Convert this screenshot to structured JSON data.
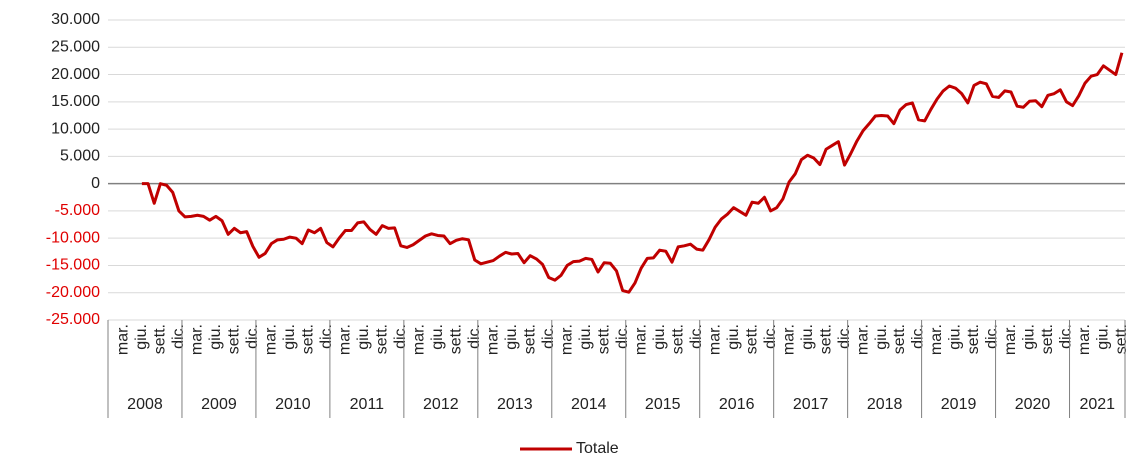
{
  "chart_data": {
    "type": "line",
    "categories": [
      null,
      null,
      "mar.",
      null,
      null,
      "giu.",
      null,
      null,
      "sett.",
      null,
      null,
      "dic.",
      null,
      null,
      "mar.",
      null,
      null,
      "giu.",
      null,
      null,
      "sett.",
      null,
      null,
      "dic.",
      null,
      null,
      "mar.",
      null,
      null,
      "giu.",
      null,
      null,
      "sett.",
      null,
      null,
      "dic.",
      null,
      null,
      "mar.",
      null,
      null,
      "giu.",
      null,
      null,
      "sett.",
      null,
      null,
      "dic.",
      null,
      null,
      "mar.",
      null,
      null,
      "giu.",
      null,
      null,
      "sett.",
      null,
      null,
      "dic.",
      null,
      null,
      "mar.",
      null,
      null,
      "giu.",
      null,
      null,
      "sett.",
      null,
      null,
      "dic.",
      null,
      null,
      "mar.",
      null,
      null,
      "giu.",
      null,
      null,
      "sett.",
      null,
      null,
      "dic.",
      null,
      null,
      "mar.",
      null,
      null,
      "giu.",
      null,
      null,
      "sett.",
      null,
      null,
      "dic.",
      null,
      null,
      "mar.",
      null,
      null,
      "giu.",
      null,
      null,
      "sett.",
      null,
      null,
      "dic.",
      null,
      null,
      "mar.",
      null,
      null,
      "giu.",
      null,
      null,
      "sett.",
      null,
      null,
      "dic.",
      null,
      null,
      "mar.",
      null,
      null,
      "giu.",
      null,
      null,
      "sett.",
      null,
      null,
      "dic.",
      null,
      null,
      "mar.",
      null,
      null,
      "giu.",
      null,
      null,
      "sett.",
      null,
      null,
      "dic.",
      null,
      null,
      "mar.",
      null,
      null,
      "giu.",
      null,
      null,
      "sett.",
      null,
      null,
      "dic.",
      null,
      null,
      "mar.",
      null,
      null,
      "giu.",
      null,
      null,
      "sett."
    ],
    "years": [
      "2008",
      "2009",
      "2010",
      "2011",
      "2012",
      "2013",
      "2014",
      "2015",
      "2016",
      "2017",
      "2018",
      "2019",
      "2020",
      "2021"
    ],
    "series": [
      {
        "name": "Totale",
        "color": "#c00000",
        "values": [
          null,
          null,
          null,
          null,
          null,
          0,
          0,
          -3600,
          0,
          -300,
          -1600,
          -5000,
          -6100,
          -6000,
          -5800,
          -6000,
          -6700,
          -6000,
          -6800,
          -9300,
          -8200,
          -9000,
          -8800,
          -11500,
          -13500,
          -12800,
          -11000,
          -10300,
          -10200,
          -9800,
          -10000,
          -11000,
          -8500,
          -9000,
          -8200,
          -10800,
          -11600,
          -10000,
          -8600,
          -8600,
          -7200,
          -7000,
          -8400,
          -9300,
          -7700,
          -8200,
          -8100,
          -11400,
          -11700,
          -11200,
          -10400,
          -9600,
          -9200,
          -9500,
          -9600,
          -11000,
          -10400,
          -10100,
          -10300,
          -14000,
          -14700,
          -14400,
          -14100,
          -13300,
          -12600,
          -12900,
          -12800,
          -14500,
          -13200,
          -13800,
          -14800,
          -17200,
          -17700,
          -16800,
          -15000,
          -14300,
          -14200,
          -13700,
          -13900,
          -16200,
          -14500,
          -14600,
          -16000,
          -19600,
          -19900,
          -18200,
          -15500,
          -13700,
          -13600,
          -12200,
          -12400,
          -14400,
          -11600,
          -11400,
          -11100,
          -12000,
          -12200,
          -10300,
          -8000,
          -6500,
          -5600,
          -4400,
          -5100,
          -5800,
          -3400,
          -3600,
          -2500,
          -5000,
          -4400,
          -2800,
          300,
          1800,
          4400,
          5200,
          4700,
          3500,
          6300,
          7000,
          7700,
          3400,
          5500,
          7800,
          9700,
          11000,
          12400,
          12500,
          12400,
          11000,
          13500,
          14500,
          14800,
          11700,
          11500,
          13600,
          15500,
          17000,
          17900,
          17500,
          16500,
          14800,
          18000,
          18600,
          18300,
          16000,
          15800,
          17000,
          16800,
          14200,
          14000,
          15100,
          15200,
          14100,
          16200,
          16500,
          17200,
          15000,
          14300,
          16100,
          18400,
          19700,
          20000,
          21600,
          20800,
          20000,
          24000
        ]
      }
    ],
    "ylim": [
      -25000,
      30000
    ],
    "yticks": [
      {
        "value": -25000,
        "label": "-25.000"
      },
      {
        "value": -20000,
        "label": "-20.000"
      },
      {
        "value": -15000,
        "label": "-15.000"
      },
      {
        "value": -10000,
        "label": "-10.000"
      },
      {
        "value": -5000,
        "label": "-5.000"
      },
      0,
      {
        "value": 5000,
        "label": "5.000"
      },
      {
        "value": 10000,
        "label": "10.000"
      },
      {
        "value": 15000,
        "label": "15.000"
      },
      {
        "value": 20000,
        "label": "20.000"
      },
      {
        "value": 25000,
        "label": "25.000"
      },
      {
        "value": 30000,
        "label": "30.000"
      }
    ],
    "grid": true,
    "legend": "bottom"
  }
}
